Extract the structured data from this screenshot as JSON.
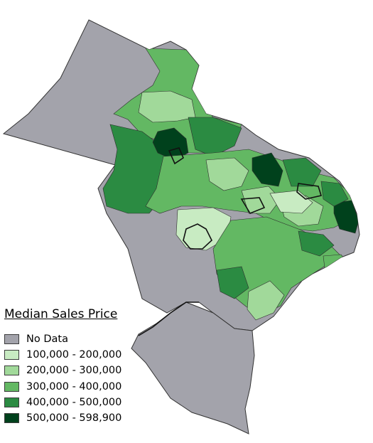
{
  "legend": {
    "title": "Median Sales Price",
    "items": [
      {
        "label": "No Data",
        "color": "#a3a3ab"
      },
      {
        "label": "100,000 - 200,000",
        "color": "#c8ebc2"
      },
      {
        "label": "200,000 - 300,000",
        "color": "#a1d99a"
      },
      {
        "label": "300,000 - 400,000",
        "color": "#63b863"
      },
      {
        "label": "400,000 - 500,000",
        "color": "#2b8b42"
      },
      {
        "label": "500,000 - 598,900",
        "color": "#00411c"
      }
    ]
  }
}
